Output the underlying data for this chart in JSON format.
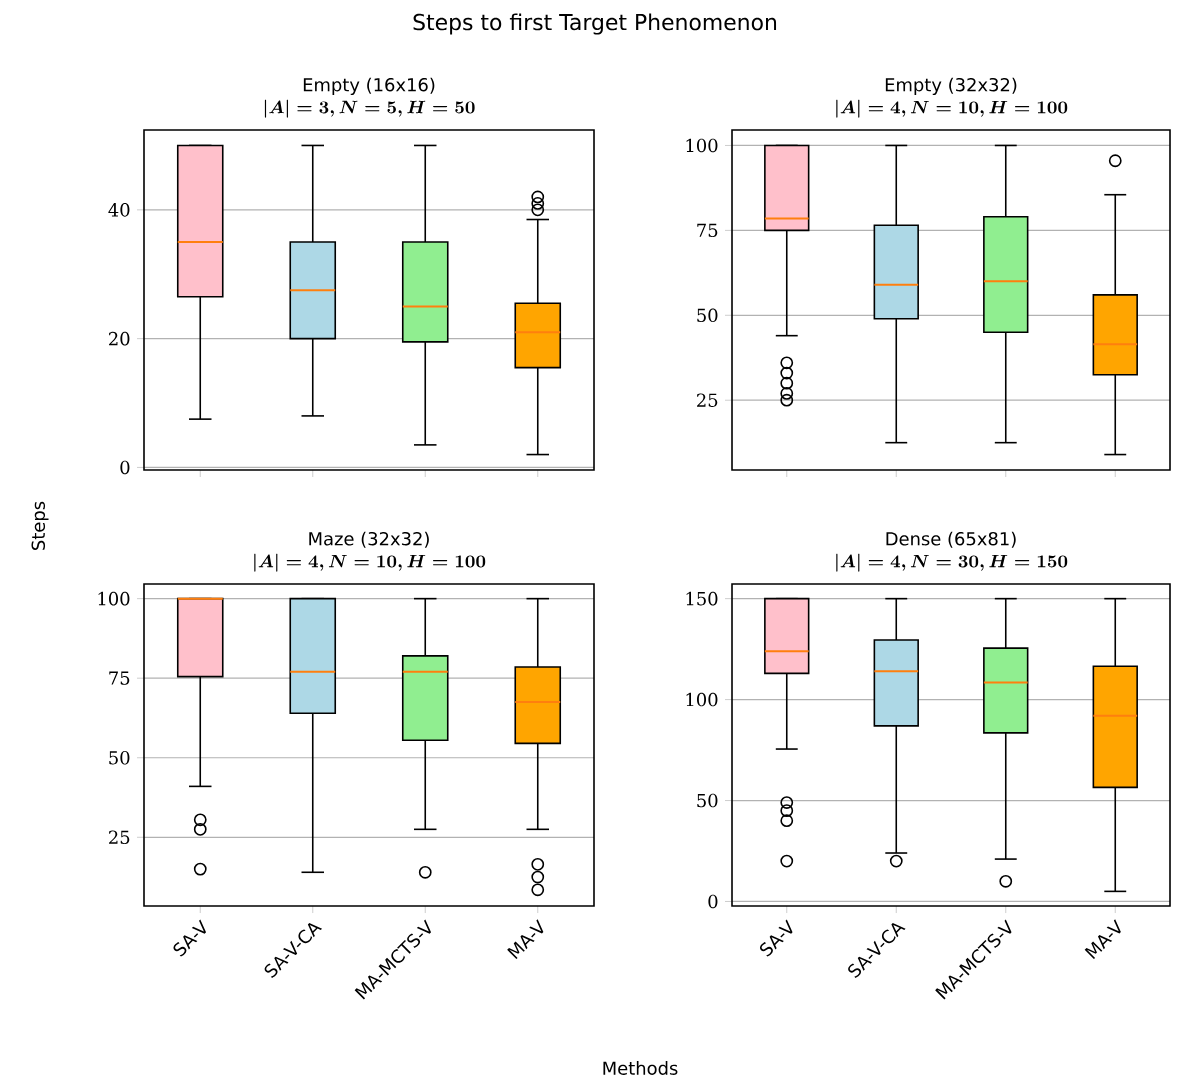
{
  "chart_data": [
    {
      "type": "box",
      "title": "Empty (16x16)",
      "subtitle": "|A| = 3, N = 5, H = 50",
      "annotations": [
        "Steps to first Target Phenomenon"
      ],
      "categories": [
        null,
        null,
        null,
        null
      ],
      "colors": [
        "#ffc0cb",
        "#add8e6",
        "#90ee90",
        "#ffa500"
      ],
      "boxes": [
        {
          "low": 7.5,
          "q1": 26.5,
          "median": 35,
          "q3": 50,
          "high": 50
        },
        {
          "low": 8,
          "q1": 20,
          "median": 27.5,
          "q3": 35,
          "high": 50
        },
        {
          "low": 3.5,
          "q1": 19.5,
          "median": 25,
          "q3": 35,
          "high": 50
        },
        {
          "low": 2,
          "q1": 15.5,
          "median": 21,
          "q3": 25.5,
          "high": 38.5,
          "outliers": [
            40,
            41,
            42
          ]
        }
      ],
      "ylim": [
        -0.4,
        52.4
      ],
      "yticks": [
        0,
        20,
        40
      ],
      "grid": "y",
      "tick_labels": "y",
      "marker": "circle"
    },
    {
      "type": "box",
      "title": "Empty (32x32)",
      "subtitle": "|A| = 4, N = 10, H = 100",
      "categories": [
        null,
        null,
        null,
        null
      ],
      "colors": [
        "#ffc0cb",
        "#add8e6",
        "#90ee90",
        "#ffa500"
      ],
      "boxes": [
        {
          "low": 44,
          "q1": 75,
          "median": 78.5,
          "q3": 100,
          "high": 100,
          "outliers": [
            25,
            27,
            30,
            33,
            36
          ]
        },
        {
          "low": 12.5,
          "q1": 49,
          "median": 59,
          "q3": 76.5,
          "high": 100
        },
        {
          "low": 12.5,
          "q1": 45,
          "median": 60,
          "q3": 79,
          "high": 100
        },
        {
          "low": 9,
          "q1": 32.5,
          "median": 41.5,
          "q3": 56,
          "high": 85.5,
          "outliers": [
            95.5
          ]
        }
      ],
      "ylim": [
        4.45,
        104.55
      ],
      "yticks": [
        25,
        50,
        75,
        100
      ],
      "grid": "y",
      "tick_labels": "y",
      "marker": "circle"
    },
    {
      "type": "box",
      "title": "Maze (32x32)",
      "subtitle": "|A| = 4, N = 10, H = 100",
      "ylabel": "Steps",
      "categories": [
        "SA-V",
        "SA-V-CA",
        "MA-MCTS-V",
        "MA-V"
      ],
      "colors": [
        "#ffc0cb",
        "#add8e6",
        "#90ee90",
        "#ffa500"
      ],
      "boxes": [
        {
          "low": 41,
          "q1": 75.5,
          "median": 100,
          "q3": 100,
          "high": 100,
          "outliers": [
            15,
            27.5,
            30.5
          ]
        },
        {
          "low": 14,
          "q1": 64,
          "median": 77,
          "q3": 100,
          "high": 100
        },
        {
          "low": 27.5,
          "q1": 55.5,
          "median": 77,
          "q3": 82,
          "high": 100,
          "outliers": [
            14
          ]
        },
        {
          "low": 27.5,
          "q1": 54.5,
          "median": 67.5,
          "q3": 78.5,
          "high": 100,
          "outliers": [
            8.5,
            12.5,
            16.5
          ]
        }
      ],
      "ylim": [
        3.4,
        104.6
      ],
      "yticks": [
        25,
        50,
        75,
        100
      ],
      "grid": "y",
      "marker": "circle"
    },
    {
      "type": "box",
      "title": "Dense (65x81)",
      "subtitle": "|A| = 4, N = 30, H = 150",
      "xlabel": "Methods",
      "categories": [
        "SA-V",
        "SA-V-CA",
        "MA-MCTS-V",
        "MA-V"
      ],
      "colors": [
        "#ffc0cb",
        "#add8e6",
        "#90ee90",
        "#ffa500"
      ],
      "boxes": [
        {
          "low": 75.5,
          "q1": 113,
          "median": 124,
          "q3": 150,
          "high": 150,
          "outliers": [
            20,
            40,
            45,
            49
          ]
        },
        {
          "low": 24,
          "q1": 87,
          "median": 114,
          "q3": 129.5,
          "high": 150,
          "outliers": [
            20
          ]
        },
        {
          "low": 21,
          "q1": 83.5,
          "median": 108.5,
          "q3": 125.5,
          "high": 150,
          "outliers": [
            10
          ]
        },
        {
          "low": 5,
          "q1": 56.5,
          "median": 92,
          "q3": 116.5,
          "high": 150
        }
      ],
      "ylim": [
        -2.25,
        157.25
      ],
      "yticks": [
        0,
        50,
        100,
        150
      ],
      "grid": "y",
      "marker": "circle"
    }
  ]
}
